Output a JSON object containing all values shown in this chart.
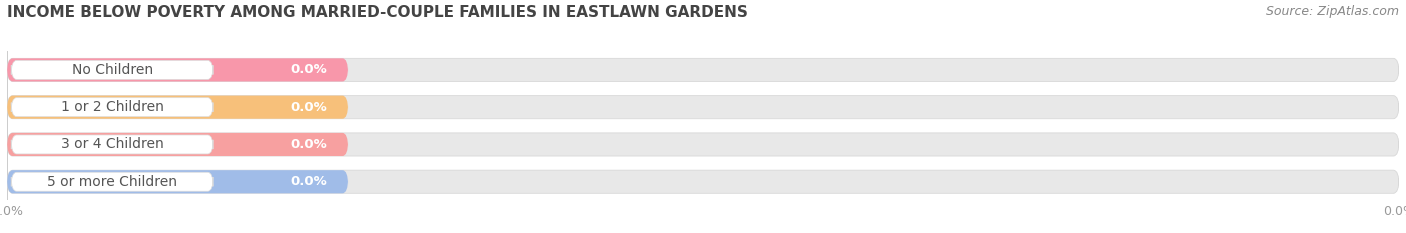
{
  "title": "INCOME BELOW POVERTY AMONG MARRIED-COUPLE FAMILIES IN EASTLAWN GARDENS",
  "source_text": "Source: ZipAtlas.com",
  "categories": [
    "No Children",
    "1 or 2 Children",
    "3 or 4 Children",
    "5 or more Children"
  ],
  "values": [
    0.0,
    0.0,
    0.0,
    0.0
  ],
  "bar_colors": [
    "#f897aa",
    "#f7c07a",
    "#f7a0a0",
    "#a0bce8"
  ],
  "label_bg_color": "#f5f5f5",
  "background_color": "#ffffff",
  "bar_bg_color": "#e8e8e8",
  "bar_bg_edge_color": "#d8d8d8",
  "title_fontsize": 11,
  "source_fontsize": 9,
  "label_fontsize": 10,
  "value_fontsize": 9.5,
  "tick_fontsize": 9,
  "fig_width": 14.06,
  "fig_height": 2.33
}
